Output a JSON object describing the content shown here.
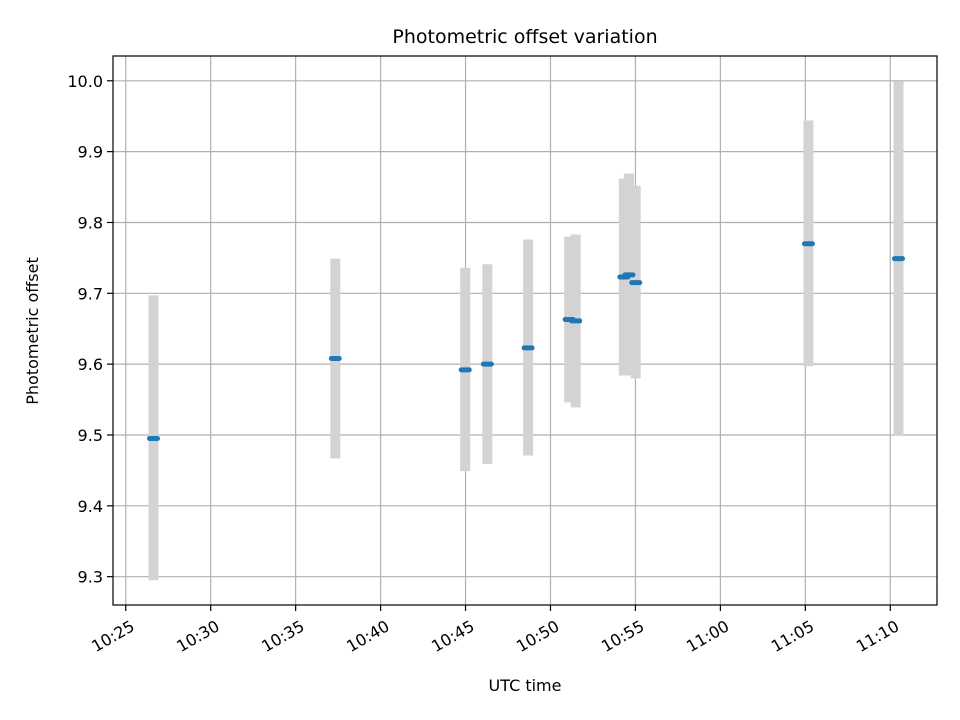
{
  "chart_data": {
    "type": "scatter",
    "title": "Photometric offset variation",
    "xlabel": "UTC time",
    "ylabel": "Photometric offset",
    "grid": true,
    "x_ticks": [
      "10:25",
      "10:30",
      "10:35",
      "10:40",
      "10:45",
      "10:50",
      "10:55",
      "11:00",
      "11:05",
      "11:10"
    ],
    "x_tick_minutes": [
      625,
      630,
      635,
      640,
      645,
      650,
      655,
      660,
      665,
      670
    ],
    "xlim_minutes": [
      624.25,
      672.75
    ],
    "y_ticks": [
      "9.3",
      "9.4",
      "9.5",
      "9.6",
      "9.7",
      "9.8",
      "9.9",
      "10.0"
    ],
    "ylim": [
      9.26,
      10.035
    ],
    "colors": {
      "points": "#1f77b4",
      "errorbars": "#d3d3d3",
      "grid": "#b0b0b0"
    },
    "points": [
      {
        "time": "10:26:38",
        "y": 9.495,
        "ylow": 9.295,
        "yhigh": 9.697
      },
      {
        "time": "10:37:20",
        "y": 9.608,
        "ylow": 9.467,
        "yhigh": 9.749
      },
      {
        "time": "10:44:59",
        "y": 9.592,
        "ylow": 9.449,
        "yhigh": 9.736
      },
      {
        "time": "10:46:17",
        "y": 9.6,
        "ylow": 9.459,
        "yhigh": 9.741
      },
      {
        "time": "10:48:41",
        "y": 9.623,
        "ylow": 9.471,
        "yhigh": 9.776
      },
      {
        "time": "10:51:06",
        "y": 9.663,
        "ylow": 9.546,
        "yhigh": 9.78
      },
      {
        "time": "10:51:29",
        "y": 9.661,
        "ylow": 9.539,
        "yhigh": 9.783
      },
      {
        "time": "10:54:19",
        "y": 9.723,
        "ylow": 9.584,
        "yhigh": 9.862
      },
      {
        "time": "10:54:37",
        "y": 9.726,
        "ylow": 9.584,
        "yhigh": 9.869
      },
      {
        "time": "10:55:01",
        "y": 9.715,
        "ylow": 9.58,
        "yhigh": 9.852
      },
      {
        "time": "11:05:11",
        "y": 9.77,
        "ylow": 9.597,
        "yhigh": 9.944
      },
      {
        "time": "11:10:29",
        "y": 9.749,
        "ylow": 9.499,
        "yhigh": 9.999
      }
    ]
  }
}
